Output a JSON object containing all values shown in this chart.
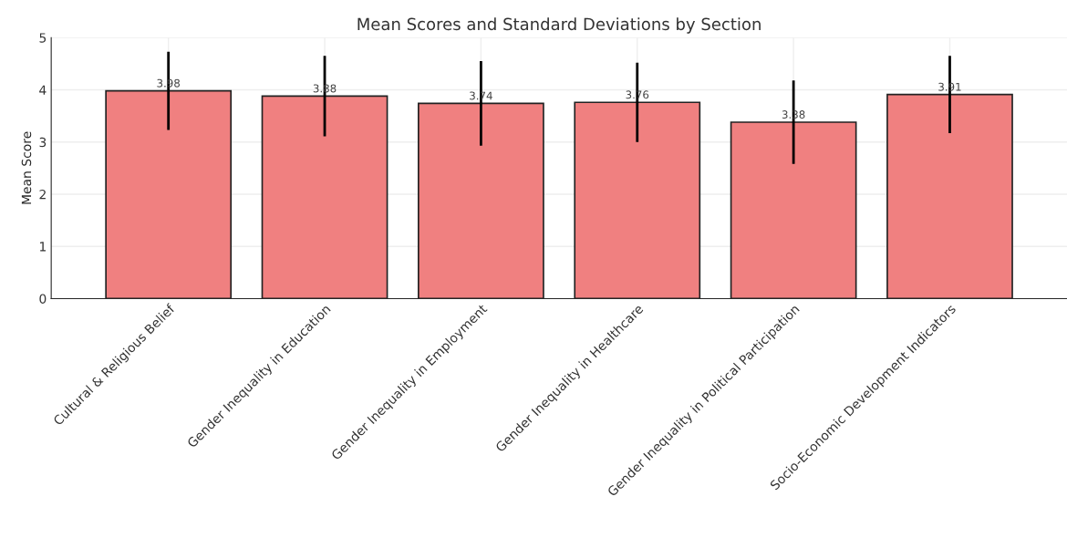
{
  "chart_data": {
    "type": "bar",
    "title": "Mean Scores and Standard Deviations by Section",
    "ylabel": "Mean Score",
    "categories": [
      "Cultural & Religious Belief",
      "Gender Inequality in Education",
      "Gender Inequality in Employment",
      "Gender Inequality in Healthcare",
      "Gender Inequality in Political Participation",
      "Socio-Economic Development Indicators"
    ],
    "values": [
      3.98,
      3.88,
      3.74,
      3.76,
      3.38,
      3.91
    ],
    "errors": [
      0.75,
      0.77,
      0.81,
      0.76,
      0.8,
      0.74
    ],
    "color": "#f08080",
    "data_labels": true,
    "ylim": [
      0,
      5
    ],
    "yticks": [
      0,
      1,
      2,
      3,
      4,
      5
    ],
    "grid": true
  }
}
